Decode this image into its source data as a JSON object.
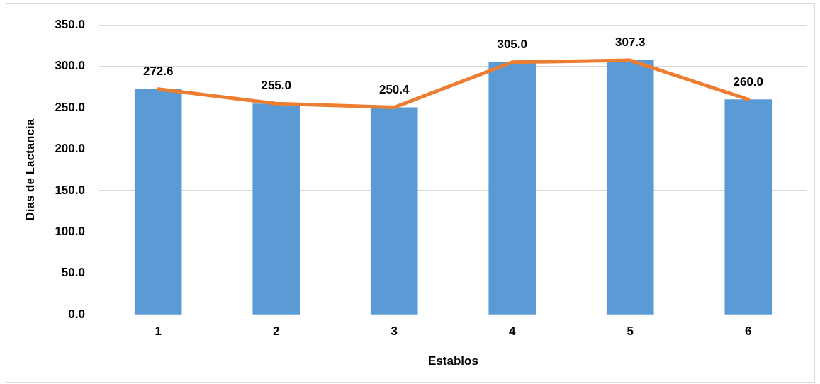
{
  "chart_data": {
    "type": "bar",
    "xlabel": "Establos",
    "ylabel": "Dias de Lactancia",
    "categories": [
      "1",
      "2",
      "3",
      "4",
      "5",
      "6"
    ],
    "series": [
      {
        "color": "#5b9bd5",
        "values": [
          272.6,
          255.0,
          250.4,
          305.0,
          307.3,
          260.0
        ],
        "value_labels": [
          "272.6",
          "255.0",
          "250.4",
          "305.0",
          "307.3",
          "260.0"
        ]
      },
      {
        "type": "line",
        "color": "#ed7d31",
        "values": [
          272.6,
          255.0,
          250.4,
          305.0,
          307.3,
          260.0
        ],
        "marker": "none"
      }
    ],
    "ylim": [
      0,
      350
    ],
    "yticks": [
      {
        "value": 0,
        "label": "0.0"
      },
      {
        "value": 50,
        "label": "50.0"
      },
      {
        "value": 100,
        "label": "100.0"
      },
      {
        "value": 150,
        "label": "150.0"
      },
      {
        "value": 200,
        "label": "200.0"
      },
      {
        "value": 250,
        "label": "250.0"
      },
      {
        "value": 300,
        "label": "300.0"
      },
      {
        "value": 350,
        "label": "350.0"
      }
    ],
    "grid": "y",
    "legend": false
  }
}
